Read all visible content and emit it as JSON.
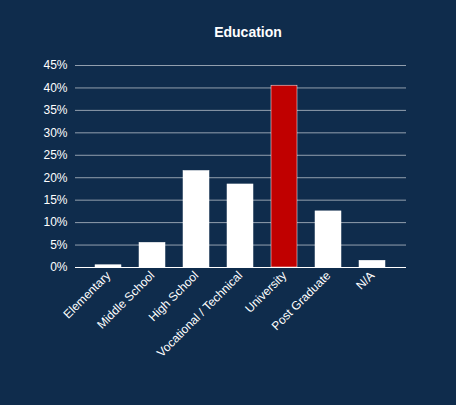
{
  "chart_data": {
    "type": "bar",
    "title": "Education",
    "categories": [
      "Elementary",
      "Middle School",
      "High School",
      "Vocational / Technical",
      "University",
      "Post Graduate",
      "N/A"
    ],
    "values": [
      0.5,
      5.5,
      21.5,
      18.5,
      40.5,
      12.5,
      1.5
    ],
    "colors": [
      "#ffffff",
      "#ffffff",
      "#ffffff",
      "#ffffff",
      "#c00000",
      "#ffffff",
      "#ffffff"
    ],
    "ylim": [
      0,
      45
    ],
    "yticks": [
      {
        "value": 0,
        "label": "0%"
      },
      {
        "value": 5,
        "label": "5%"
      },
      {
        "value": 10,
        "label": "10%"
      },
      {
        "value": 15,
        "label": "15%"
      },
      {
        "value": 20,
        "label": "20%"
      },
      {
        "value": 25,
        "label": "25%"
      },
      {
        "value": 30,
        "label": "30%"
      },
      {
        "value": 35,
        "label": "35%"
      },
      {
        "value": 40,
        "label": "40%"
      },
      {
        "value": 45,
        "label": "45%"
      }
    ],
    "grid": true
  }
}
